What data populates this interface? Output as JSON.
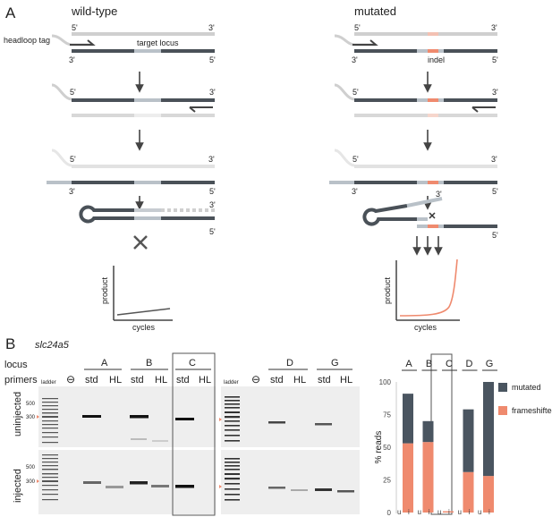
{
  "panel_a": {
    "label": "A",
    "wildtype": {
      "title": "wild-type",
      "headloop_tag": "headloop tag",
      "target_locus": "target locus",
      "end_5": "5'",
      "end_3": "3'"
    },
    "mutated": {
      "title": "mutated",
      "indel": "indel",
      "end_5": "5'",
      "end_3": "3'"
    },
    "plot": {
      "ylabel": "product",
      "xlabel": "cycles"
    }
  },
  "panel_b": {
    "label": "B",
    "gene": "slc24a5",
    "row_locus": "locus",
    "row_primers": "primers",
    "ladder": "ladder",
    "ladder_500": "500",
    "ladder_300": "300",
    "row_uninjected": "uninjected",
    "row_injected": "injected",
    "loci_left": [
      "A",
      "B",
      "C"
    ],
    "loci_right": [
      "D",
      "G"
    ],
    "primer_std": "std",
    "primer_hl": "HL",
    "negative_symbol": "⊖"
  },
  "chart_data": {
    "type": "bar",
    "categories": [
      "A",
      "B",
      "C",
      "D",
      "G"
    ],
    "ylabel": "% reads",
    "ylim": [
      0,
      100
    ],
    "yticks": [
      "0",
      "25",
      "50",
      "75",
      "100"
    ],
    "sublabels": [
      "u",
      "i"
    ],
    "series": [
      {
        "name": "frameshifted",
        "color": "#ef8a6e",
        "values": [
          53,
          54,
          1,
          31,
          28
        ]
      },
      {
        "name": "mutated",
        "color": "#4a5560",
        "values": [
          38,
          16,
          0,
          48,
          72
        ]
      }
    ],
    "legend_position": "right",
    "highlighted_category": "C"
  }
}
